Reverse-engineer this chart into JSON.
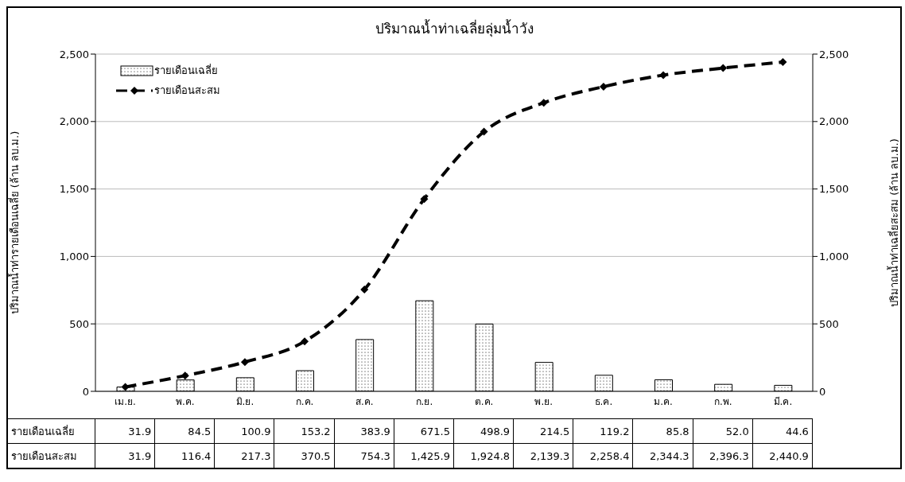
{
  "chart_data": {
    "type": "bar",
    "title": "ปริมาณน้ำท่าเฉลี่ยลุ่มน้ำวัง",
    "ylabel": "ปริมาณน้ำท่ารายเดือนเฉลี่ย  (ล้าน ลบ.ม.)",
    "y2label": "ปริมาณน้ำท่าเฉลี่ยสะสม  (ล้าน ลบ.ม.)",
    "categories": [
      "เม.ย.",
      "พ.ค.",
      "มิ.ย.",
      "ก.ค.",
      "ส.ค.",
      "ก.ย.",
      "ต.ค.",
      "พ.ย.",
      "ธ.ค.",
      "ม.ค.",
      "ก.พ.",
      "มี.ค."
    ],
    "series": [
      {
        "name": "รายเดือนเฉลี่ย",
        "color": "#000000",
        "values": [
          31.9,
          84.5,
          100.9,
          153.2,
          383.9,
          671.5,
          498.9,
          214.5,
          119.2,
          85.8,
          52.0,
          44.6
        ],
        "value_labels": [
          "31.9",
          "84.5",
          "100.9",
          "153.2",
          "383.9",
          "671.5",
          "498.9",
          "214.5",
          "119.2",
          "85.8",
          "52.0",
          "44.6"
        ]
      },
      {
        "name": "รายเดือนสะสม",
        "type": "line",
        "axis": "y2",
        "color": "#000000",
        "marker": "diamond",
        "line_style": "dashed",
        "values": [
          31.9,
          116.4,
          217.3,
          370.5,
          754.3,
          1425.9,
          1924.8,
          2139.3,
          2258.4,
          2344.3,
          2396.3,
          2440.9
        ],
        "value_labels": [
          "31.9",
          "116.4",
          "217.3",
          "370.5",
          "754.3",
          "1,425.9",
          "1,924.8",
          "2,139.3",
          "2,258.4",
          "2,344.3",
          "2,396.3",
          "2,440.9"
        ]
      }
    ],
    "ylim": [
      0,
      2500
    ],
    "yticks": [
      {
        "value": 0,
        "label": "0"
      },
      {
        "value": 500,
        "label": "500"
      },
      {
        "value": 1000,
        "label": "1,000"
      },
      {
        "value": 1500,
        "label": "1,500"
      },
      {
        "value": 2000,
        "label": "2,000"
      },
      {
        "value": 2500,
        "label": "2,500"
      }
    ],
    "y2lim": [
      0,
      2500
    ],
    "y2ticks": [
      {
        "value": 0,
        "label": "0"
      },
      {
        "value": 500,
        "label": "500"
      },
      {
        "value": 1000,
        "label": "1,000"
      },
      {
        "value": 1500,
        "label": "1,500"
      },
      {
        "value": 2000,
        "label": "2,000"
      },
      {
        "value": 2500,
        "label": "2,500"
      }
    ],
    "grid": "y",
    "legend": "top left"
  }
}
